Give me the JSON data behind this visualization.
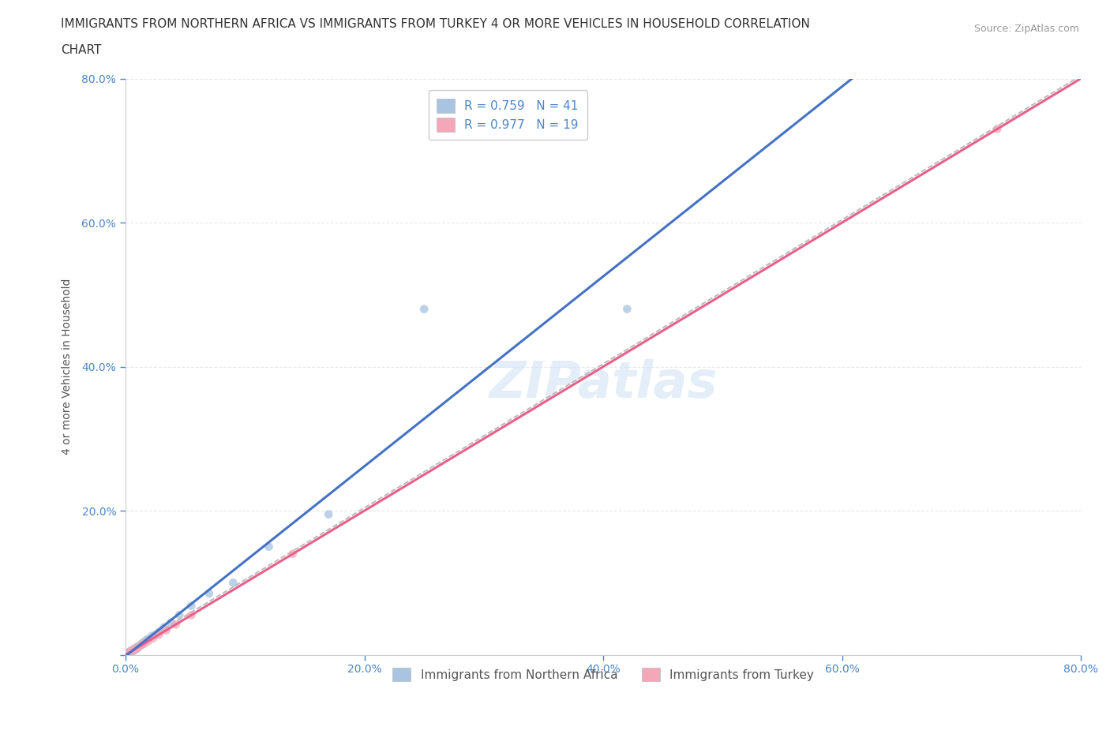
{
  "title_line1": "IMMIGRANTS FROM NORTHERN AFRICA VS IMMIGRANTS FROM TURKEY 4 OR MORE VEHICLES IN HOUSEHOLD CORRELATION",
  "title_line2": "CHART",
  "source": "Source: ZipAtlas.com",
  "xlabel": "",
  "ylabel": "4 or more Vehicles in Household",
  "xlim": [
    0,
    0.8
  ],
  "ylim": [
    0,
    0.8
  ],
  "xticks": [
    0.0,
    0.2,
    0.4,
    0.6,
    0.8
  ],
  "yticks": [
    0.0,
    0.2,
    0.4,
    0.6,
    0.8
  ],
  "xticklabels": [
    "0.0%",
    "20.0%",
    "40.0%",
    "60.0%",
    "80.0%"
  ],
  "yticklabels": [
    "",
    "20.0%",
    "40.0%",
    "60.0%",
    "80.0%"
  ],
  "legend_entries": [
    {
      "label": "R = 0.759   N = 41",
      "color": "#a8c4e0"
    },
    {
      "label": "R = 0.977   N = 19",
      "color": "#f4a7b9"
    }
  ],
  "legend_bottom": [
    {
      "label": "Immigrants from Northern Africa",
      "color": "#a8c4e0"
    },
    {
      "label": "Immigrants from Turkey",
      "color": "#f4a7b9"
    }
  ],
  "watermark": "ZIPatlas",
  "R_africa": 0.759,
  "N_africa": 41,
  "R_turkey": 0.977,
  "N_turkey": 19,
  "scatter_africa_x": [
    0.003,
    0.003,
    0.003,
    0.004,
    0.004,
    0.004,
    0.005,
    0.005,
    0.005,
    0.006,
    0.006,
    0.007,
    0.007,
    0.007,
    0.008,
    0.008,
    0.008,
    0.009,
    0.009,
    0.01,
    0.01,
    0.011,
    0.012,
    0.013,
    0.014,
    0.015,
    0.017,
    0.019,
    0.022,
    0.025,
    0.028,
    0.032,
    0.038,
    0.045,
    0.055,
    0.07,
    0.09,
    0.12,
    0.17,
    0.25,
    0.42
  ],
  "scatter_africa_y": [
    0.002,
    0.003,
    0.004,
    0.003,
    0.004,
    0.005,
    0.004,
    0.005,
    0.006,
    0.005,
    0.006,
    0.006,
    0.007,
    0.008,
    0.007,
    0.008,
    0.009,
    0.008,
    0.01,
    0.009,
    0.011,
    0.012,
    0.013,
    0.014,
    0.016,
    0.017,
    0.02,
    0.022,
    0.026,
    0.028,
    0.032,
    0.038,
    0.045,
    0.055,
    0.068,
    0.085,
    0.1,
    0.15,
    0.195,
    0.48,
    0.48
  ],
  "scatter_turkey_x": [
    0.003,
    0.004,
    0.005,
    0.006,
    0.007,
    0.008,
    0.009,
    0.01,
    0.012,
    0.014,
    0.016,
    0.019,
    0.023,
    0.028,
    0.034,
    0.042,
    0.055,
    0.14,
    0.73
  ],
  "scatter_turkey_y": [
    0.003,
    0.004,
    0.005,
    0.006,
    0.007,
    0.008,
    0.009,
    0.01,
    0.012,
    0.014,
    0.016,
    0.019,
    0.023,
    0.028,
    0.034,
    0.042,
    0.055,
    0.14,
    0.73
  ],
  "color_africa": "#a8c4e0",
  "color_turkey": "#f4a7b9",
  "line_color_africa": "#4472c4",
  "line_color_turkey": "#e8608a",
  "trendline_color": "#b8b8b8",
  "grid_color": "#e8e8e8",
  "background_color": "#ffffff",
  "title_fontsize": 11,
  "axis_label_fontsize": 10,
  "tick_fontsize": 10,
  "trendline_slope": 1.0,
  "trendline_intercept": 0.004
}
